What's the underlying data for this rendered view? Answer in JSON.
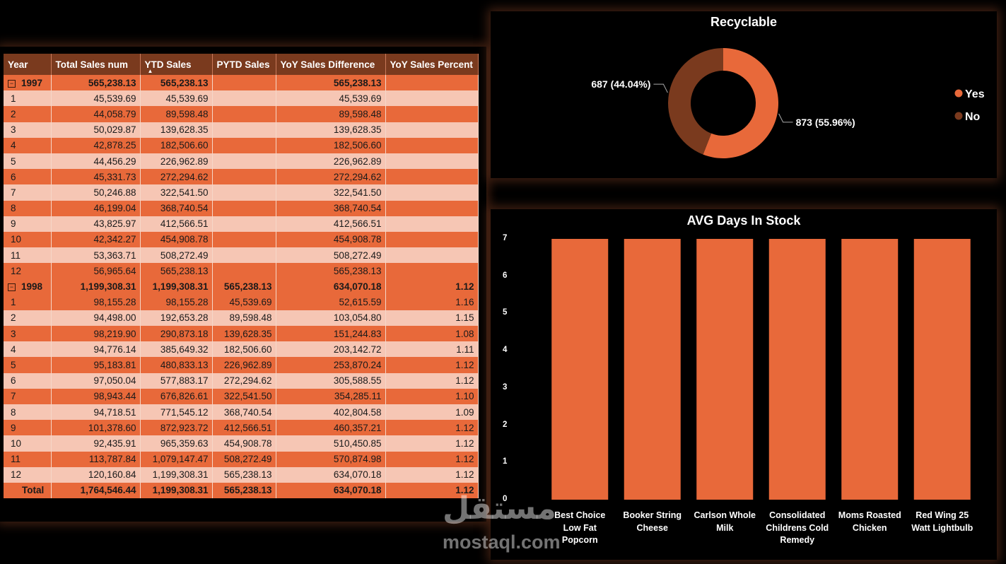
{
  "table": {
    "headers": [
      "Year",
      "Total Sales num",
      "YTD Sales",
      "PYTD Sales",
      "YoY Sales Difference",
      "YoY Sales Percent"
    ],
    "rows": [
      {
        "type": "year",
        "cells": [
          "1997",
          "565,238.13",
          "565,238.13",
          "",
          "565,238.13",
          ""
        ]
      },
      {
        "type": "light",
        "cells": [
          "1",
          "45,539.69",
          "45,539.69",
          "",
          "45,539.69",
          ""
        ]
      },
      {
        "type": "dark",
        "cells": [
          "2",
          "44,058.79",
          "89,598.48",
          "",
          "89,598.48",
          ""
        ]
      },
      {
        "type": "light",
        "cells": [
          "3",
          "50,029.87",
          "139,628.35",
          "",
          "139,628.35",
          ""
        ]
      },
      {
        "type": "dark",
        "cells": [
          "4",
          "42,878.25",
          "182,506.60",
          "",
          "182,506.60",
          ""
        ]
      },
      {
        "type": "light",
        "cells": [
          "5",
          "44,456.29",
          "226,962.89",
          "",
          "226,962.89",
          ""
        ]
      },
      {
        "type": "dark",
        "cells": [
          "6",
          "45,331.73",
          "272,294.62",
          "",
          "272,294.62",
          ""
        ]
      },
      {
        "type": "light",
        "cells": [
          "7",
          "50,246.88",
          "322,541.50",
          "",
          "322,541.50",
          ""
        ]
      },
      {
        "type": "dark",
        "cells": [
          "8",
          "46,199.04",
          "368,740.54",
          "",
          "368,740.54",
          ""
        ]
      },
      {
        "type": "light",
        "cells": [
          "9",
          "43,825.97",
          "412,566.51",
          "",
          "412,566.51",
          ""
        ]
      },
      {
        "type": "dark",
        "cells": [
          "10",
          "42,342.27",
          "454,908.78",
          "",
          "454,908.78",
          ""
        ]
      },
      {
        "type": "light",
        "cells": [
          "11",
          "53,363.71",
          "508,272.49",
          "",
          "508,272.49",
          ""
        ]
      },
      {
        "type": "dark",
        "cells": [
          "12",
          "56,965.64",
          "565,238.13",
          "",
          "565,238.13",
          ""
        ]
      },
      {
        "type": "year",
        "cells": [
          "1998",
          "1,199,308.31",
          "1,199,308.31",
          "565,238.13",
          "634,070.18",
          "1.12"
        ]
      },
      {
        "type": "dark",
        "cells": [
          "1",
          "98,155.28",
          "98,155.28",
          "45,539.69",
          "52,615.59",
          "1.16"
        ]
      },
      {
        "type": "light",
        "cells": [
          "2",
          "94,498.00",
          "192,653.28",
          "89,598.48",
          "103,054.80",
          "1.15"
        ]
      },
      {
        "type": "dark",
        "cells": [
          "3",
          "98,219.90",
          "290,873.18",
          "139,628.35",
          "151,244.83",
          "1.08"
        ]
      },
      {
        "type": "light",
        "cells": [
          "4",
          "94,776.14",
          "385,649.32",
          "182,506.60",
          "203,142.72",
          "1.11"
        ]
      },
      {
        "type": "dark",
        "cells": [
          "5",
          "95,183.81",
          "480,833.13",
          "226,962.89",
          "253,870.24",
          "1.12"
        ]
      },
      {
        "type": "light",
        "cells": [
          "6",
          "97,050.04",
          "577,883.17",
          "272,294.62",
          "305,588.55",
          "1.12"
        ]
      },
      {
        "type": "dark",
        "cells": [
          "7",
          "98,943.44",
          "676,826.61",
          "322,541.50",
          "354,285.11",
          "1.10"
        ]
      },
      {
        "type": "light",
        "cells": [
          "8",
          "94,718.51",
          "771,545.12",
          "368,740.54",
          "402,804.58",
          "1.09"
        ]
      },
      {
        "type": "dark",
        "cells": [
          "9",
          "101,378.60",
          "872,923.72",
          "412,566.51",
          "460,357.21",
          "1.12"
        ]
      },
      {
        "type": "light",
        "cells": [
          "10",
          "92,435.91",
          "965,359.63",
          "454,908.78",
          "510,450.85",
          "1.12"
        ]
      },
      {
        "type": "dark",
        "cells": [
          "11",
          "113,787.84",
          "1,079,147.47",
          "508,272.49",
          "570,874.98",
          "1.12"
        ]
      },
      {
        "type": "light",
        "cells": [
          "12",
          "120,160.84",
          "1,199,308.31",
          "565,238.13",
          "634,070.18",
          "1.12"
        ]
      },
      {
        "type": "total",
        "cells": [
          "Total",
          "1,764,546.44",
          "1,199,308.31",
          "565,238.13",
          "634,070.18",
          "1.12"
        ]
      }
    ]
  },
  "chart_data": [
    {
      "type": "pie",
      "title": "Recyclable",
      "donut": true,
      "legend": "right",
      "slices": [
        {
          "label": "Yes",
          "value": 873,
          "pct_label": "873 (55.96%)",
          "color": "#e8693a"
        },
        {
          "label": "No",
          "value": 687,
          "pct_label": "687 (44.04%)",
          "color": "#7a3a1e"
        }
      ]
    },
    {
      "type": "bar",
      "title": "AVG Days In Stock",
      "categories": [
        "Best Choice Low Fat Popcorn",
        "Booker String Cheese",
        "Carlson Whole Milk",
        "Consolidated Childrens Cold Remedy",
        "Moms Roasted Chicken",
        "Red Wing 25 Watt Lightbulb"
      ],
      "category_lines": [
        [
          "Best Choice",
          "Low Fat",
          "Popcorn"
        ],
        [
          "Booker String",
          "Cheese"
        ],
        [
          "Carlson Whole",
          "Milk"
        ],
        [
          "Consolidated",
          "Childrens Cold",
          "Remedy"
        ],
        [
          "Moms Roasted",
          "Chicken"
        ],
        [
          "Red Wing 25",
          "Watt Lightbulb"
        ]
      ],
      "values": [
        7,
        7,
        7,
        7,
        7,
        7
      ],
      "ylim": [
        0,
        7
      ],
      "yticks": [
        "0",
        "1",
        "2",
        "3",
        "4",
        "5",
        "6",
        "7"
      ],
      "bar_color": "#e8693a",
      "grid": false
    }
  ],
  "watermark": {
    "arabic": "مستقل",
    "latin": "mostaql.com"
  }
}
